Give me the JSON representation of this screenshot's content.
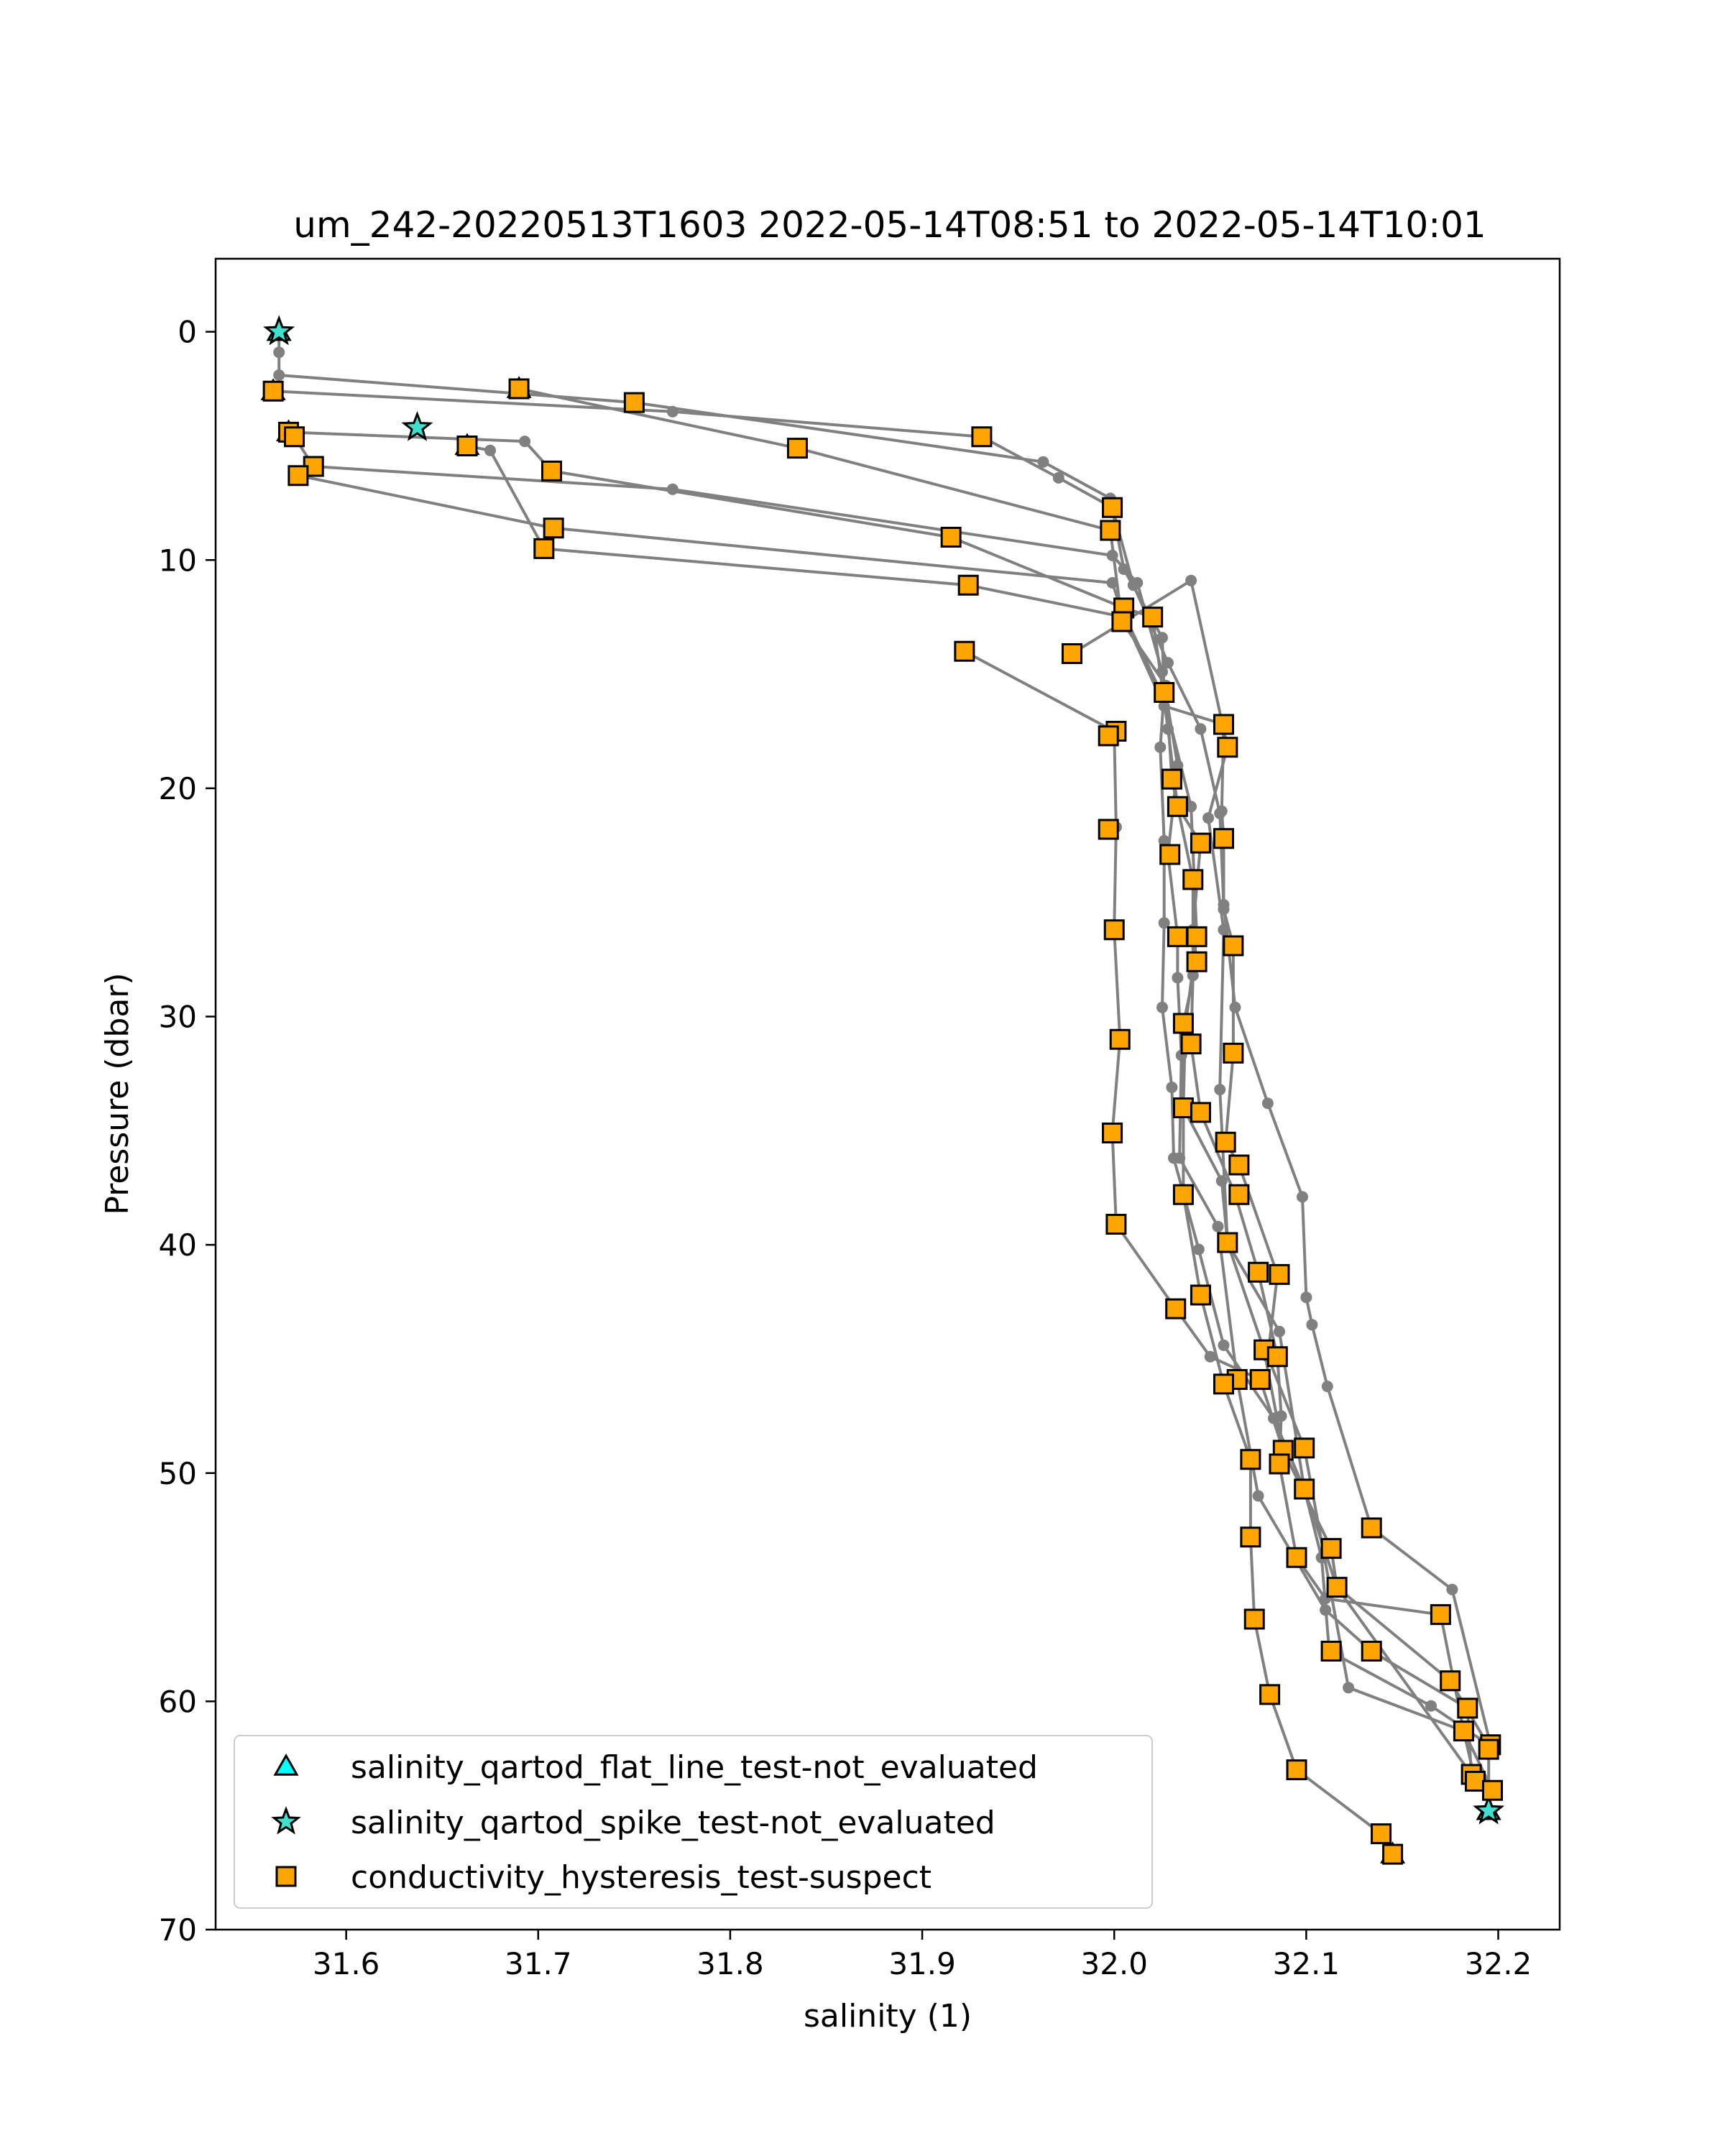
{
  "chart_data": {
    "type": "scatter",
    "title": "um_242-20220513T1603 2022-05-14T08:51 to 2022-05-14T10:01",
    "xlabel": "salinity (1)",
    "ylabel": "Pressure (dbar)",
    "xlim": [
      31.532,
      32.232
    ],
    "ylim": [
      70,
      -3.2
    ],
    "y_inverted": true,
    "xticks": [
      31.6,
      31.7,
      31.8,
      31.9,
      32.0,
      32.1,
      32.2
    ],
    "xtick_labels": [
      "31.6",
      "31.7",
      "31.8",
      "31.9",
      "32.0",
      "32.1",
      "32.2"
    ],
    "yticks": [
      0,
      10,
      20,
      30,
      40,
      50,
      60,
      70
    ],
    "ytick_labels": [
      "0",
      "10",
      "20",
      "30",
      "40",
      "50",
      "60",
      "70"
    ],
    "grid": false,
    "legend_position": "lower-left",
    "colors": {
      "line": "#808080",
      "flat_line": "#00FFFF",
      "spike": "#40E0D0",
      "hysteresis": "#FFA500",
      "marker_edge": "#000000"
    },
    "series": [
      {
        "name": "salinity_qartod_flat_line_test-not_evaluated",
        "marker": "triangle",
        "points": [
          [
            31.565,
            0.0
          ],
          [
            31.562,
            2.6
          ],
          [
            31.69,
            2.5
          ],
          [
            31.57,
            4.4
          ],
          [
            31.663,
            5.0
          ],
          [
            32.195,
            64.8
          ],
          [
            32.145,
            66.7
          ]
        ]
      },
      {
        "name": "salinity_qartod_spike_test-not_evaluated",
        "marker": "star",
        "points": [
          [
            31.565,
            0.0
          ],
          [
            31.637,
            4.2
          ],
          [
            32.195,
            64.8
          ]
        ]
      },
      {
        "name": "conductivity_hysteresis_test-suspect",
        "marker": "square",
        "points": [
          [
            31.562,
            2.6
          ],
          [
            31.69,
            2.5
          ],
          [
            31.75,
            3.1
          ],
          [
            31.931,
            4.6
          ],
          [
            31.835,
            5.1
          ],
          [
            31.57,
            4.4
          ],
          [
            31.573,
            4.6
          ],
          [
            31.583,
            5.9
          ],
          [
            31.575,
            6.3
          ],
          [
            31.663,
            5.0
          ],
          [
            31.707,
            6.1
          ],
          [
            31.708,
            8.6
          ],
          [
            31.703,
            9.5
          ],
          [
            31.915,
            9.0
          ],
          [
            31.924,
            11.1
          ],
          [
            31.922,
            14.0
          ],
          [
            31.978,
            14.1
          ],
          [
            31.999,
            7.7
          ],
          [
            31.998,
            8.7
          ],
          [
            32.02,
            12.5
          ],
          [
            32.005,
            12.1
          ],
          [
            32.004,
            12.7
          ],
          [
            32.026,
            15.8
          ],
          [
            32.057,
            17.2
          ],
          [
            32.059,
            18.2
          ],
          [
            32.001,
            17.5
          ],
          [
            31.997,
            17.7
          ],
          [
            32.03,
            19.6
          ],
          [
            32.033,
            20.8
          ],
          [
            31.997,
            21.8
          ],
          [
            32.029,
            22.9
          ],
          [
            32.045,
            22.4
          ],
          [
            32.057,
            22.2
          ],
          [
            32.041,
            24.0
          ],
          [
            32.033,
            26.5
          ],
          [
            32.043,
            26.5
          ],
          [
            32.062,
            26.9
          ],
          [
            32.043,
            27.6
          ],
          [
            32.0,
            26.2
          ],
          [
            32.036,
            30.3
          ],
          [
            32.04,
            31.2
          ],
          [
            32.062,
            31.6
          ],
          [
            32.003,
            31.0
          ],
          [
            32.036,
            34.0
          ],
          [
            32.045,
            34.2
          ],
          [
            32.058,
            35.5
          ],
          [
            32.065,
            36.5
          ],
          [
            31.999,
            35.1
          ],
          [
            32.036,
            37.8
          ],
          [
            32.065,
            37.8
          ],
          [
            32.001,
            39.1
          ],
          [
            32.059,
            39.9
          ],
          [
            32.075,
            41.2
          ],
          [
            32.086,
            41.3
          ],
          [
            32.045,
            42.2
          ],
          [
            32.032,
            42.8
          ],
          [
            32.078,
            44.6
          ],
          [
            32.085,
            44.9
          ],
          [
            32.064,
            45.9
          ],
          [
            32.057,
            46.1
          ],
          [
            32.076,
            45.9
          ],
          [
            32.088,
            49.0
          ],
          [
            32.099,
            48.9
          ],
          [
            32.086,
            49.6
          ],
          [
            32.071,
            49.4
          ],
          [
            32.099,
            50.7
          ],
          [
            32.134,
            52.4
          ],
          [
            32.113,
            53.3
          ],
          [
            32.071,
            52.8
          ],
          [
            32.095,
            53.7
          ],
          [
            32.116,
            55.0
          ],
          [
            32.17,
            56.2
          ],
          [
            32.073,
            56.4
          ],
          [
            32.113,
            57.8
          ],
          [
            32.134,
            57.8
          ],
          [
            32.175,
            59.1
          ],
          [
            32.184,
            60.3
          ],
          [
            32.081,
            59.7
          ],
          [
            32.182,
            61.3
          ],
          [
            32.196,
            61.9
          ],
          [
            32.195,
            62.1
          ],
          [
            32.186,
            63.2
          ],
          [
            32.188,
            63.5
          ],
          [
            32.197,
            63.9
          ],
          [
            32.095,
            63.0
          ],
          [
            32.139,
            65.8
          ],
          [
            32.145,
            66.7
          ]
        ]
      }
    ],
    "profiles": [
      [
        [
          31.565,
          0.0
        ],
        [
          31.565,
          0.9
        ],
        [
          31.565,
          1.9
        ],
        [
          31.75,
          3.1
        ],
        [
          31.963,
          5.7
        ],
        [
          31.998,
          7.3
        ],
        [
          32.005,
          10.4
        ],
        [
          32.025,
          13.4
        ],
        [
          32.026,
          15.8
        ],
        [
          32.024,
          18.2
        ],
        [
          32.026,
          22.3
        ],
        [
          32.026,
          25.9
        ],
        [
          32.025,
          29.6
        ],
        [
          32.03,
          33.1
        ],
        [
          32.031,
          36.2
        ],
        [
          32.044,
          40.2
        ],
        [
          32.057,
          44.4
        ],
        [
          32.083,
          47.6
        ],
        [
          32.099,
          50.7
        ],
        [
          32.108,
          53.7
        ],
        [
          32.112,
          57.8
        ],
        [
          32.165,
          60.2
        ],
        [
          32.195,
          61.9
        ],
        [
          32.195,
          63.7
        ],
        [
          32.195,
          64.8
        ]
      ],
      [
        [
          31.562,
          2.6
        ],
        [
          31.77,
          3.5
        ],
        [
          31.931,
          4.6
        ],
        [
          31.971,
          6.4
        ],
        [
          31.999,
          7.7
        ],
        [
          32.01,
          11.1
        ],
        [
          32.028,
          14.5
        ],
        [
          32.045,
          17.4
        ],
        [
          32.055,
          21.1
        ],
        [
          32.057,
          25.1
        ],
        [
          32.063,
          29.6
        ],
        [
          32.08,
          33.8
        ],
        [
          32.098,
          37.9
        ],
        [
          32.1,
          42.3
        ],
        [
          32.103,
          43.5
        ],
        [
          32.111,
          46.2
        ],
        [
          32.134,
          52.4
        ],
        [
          32.176,
          55.1
        ],
        [
          32.196,
          61.9
        ]
      ],
      [
        [
          31.69,
          2.5
        ],
        [
          31.835,
          5.1
        ],
        [
          31.998,
          8.7
        ],
        [
          32.004,
          12.7
        ],
        [
          32.027,
          15.5
        ],
        [
          32.03,
          19.6
        ],
        [
          32.041,
          24.0
        ],
        [
          32.041,
          28.2
        ],
        [
          32.04,
          31.2
        ],
        [
          32.045,
          34.2
        ],
        [
          32.063,
          37.8
        ],
        [
          32.075,
          41.2
        ],
        [
          32.085,
          44.9
        ],
        [
          32.087,
          47.5
        ],
        [
          32.086,
          49.6
        ],
        [
          32.095,
          53.7
        ],
        [
          32.11,
          55.5
        ],
        [
          32.17,
          56.2
        ],
        [
          32.182,
          61.3
        ],
        [
          32.188,
          63.5
        ]
      ],
      [
        [
          31.57,
          4.4
        ],
        [
          31.693,
          4.8
        ],
        [
          31.707,
          6.1
        ],
        [
          31.915,
          9.0
        ],
        [
          32.005,
          12.1
        ],
        [
          32.02,
          12.5
        ],
        [
          32.028,
          17.4
        ],
        [
          32.033,
          20.8
        ],
        [
          32.045,
          22.4
        ],
        [
          32.041,
          26.2
        ],
        [
          32.043,
          27.6
        ],
        [
          32.036,
          30.3
        ],
        [
          32.036,
          34.0
        ],
        [
          32.036,
          37.8
        ],
        [
          32.045,
          42.2
        ],
        [
          32.057,
          46.1
        ],
        [
          32.071,
          49.4
        ],
        [
          32.071,
          52.8
        ],
        [
          32.073,
          56.4
        ],
        [
          32.081,
          59.7
        ],
        [
          32.095,
          63.0
        ],
        [
          32.139,
          65.8
        ],
        [
          32.145,
          66.7
        ]
      ],
      [
        [
          31.573,
          4.6
        ],
        [
          31.583,
          5.9
        ],
        [
          31.77,
          6.9
        ],
        [
          31.999,
          9.8
        ],
        [
          32.012,
          11.0
        ],
        [
          32.025,
          14.9
        ],
        [
          32.033,
          19.0
        ],
        [
          32.028,
          22.9
        ],
        [
          32.033,
          26.5
        ],
        [
          32.033,
          28.3
        ],
        [
          32.035,
          31.7
        ],
        [
          32.034,
          36.2
        ],
        [
          32.054,
          39.2
        ],
        [
          32.064,
          45.9
        ],
        [
          32.075,
          51.0
        ],
        [
          32.11,
          56.0
        ],
        [
          32.134,
          57.8
        ],
        [
          32.184,
          60.3
        ],
        [
          32.186,
          63.2
        ]
      ],
      [
        [
          31.575,
          6.3
        ],
        [
          31.708,
          8.6
        ],
        [
          31.999,
          11.0
        ],
        [
          32.003,
          12.0
        ],
        [
          32.026,
          16.1
        ],
        [
          32.04,
          20.8
        ],
        [
          32.043,
          26.5
        ],
        [
          32.037,
          30.5
        ],
        [
          32.036,
          34.0
        ],
        [
          32.056,
          37.2
        ],
        [
          32.059,
          39.9
        ],
        [
          32.078,
          44.6
        ],
        [
          32.088,
          49.0
        ],
        [
          32.113,
          53.3
        ],
        [
          32.116,
          55.0
        ],
        [
          32.175,
          59.1
        ],
        [
          32.196,
          62.1
        ]
      ],
      [
        [
          31.663,
          5.0
        ],
        [
          31.675,
          5.2
        ],
        [
          31.703,
          9.5
        ],
        [
          31.924,
          11.1
        ],
        [
          32.005,
          12.5
        ],
        [
          32.026,
          16.4
        ],
        [
          32.057,
          17.2
        ],
        [
          32.056,
          21.0
        ],
        [
          32.057,
          22.2
        ],
        [
          32.057,
          25.3
        ],
        [
          32.062,
          26.9
        ],
        [
          32.062,
          31.6
        ],
        [
          32.058,
          35.5
        ],
        [
          32.065,
          36.5
        ],
        [
          32.085,
          41.3
        ],
        [
          32.08,
          44.9
        ],
        [
          32.099,
          48.9
        ],
        [
          32.122,
          59.4
        ],
        [
          32.182,
          61.3
        ],
        [
          32.197,
          63.9
        ]
      ],
      [
        [
          31.922,
          14.0
        ],
        [
          32.0,
          17.5
        ],
        [
          32.001,
          21.7
        ],
        [
          32.0,
          26.2
        ],
        [
          32.003,
          31.0
        ],
        [
          31.999,
          35.1
        ],
        [
          32.001,
          39.1
        ],
        [
          32.032,
          42.8
        ],
        [
          32.05,
          44.9
        ],
        [
          32.076,
          45.9
        ],
        [
          32.088,
          49.0
        ],
        [
          32.113,
          53.3
        ]
      ],
      [
        [
          31.978,
          14.1
        ],
        [
          32.04,
          10.9
        ],
        [
          32.059,
          18.2
        ],
        [
          32.049,
          21.3
        ],
        [
          32.057,
          26.2
        ],
        [
          32.055,
          33.2
        ],
        [
          32.059,
          39.9
        ],
        [
          32.086,
          43.8
        ],
        [
          32.099,
          50.7
        ],
        [
          32.116,
          55.0
        ],
        [
          32.186,
          63.2
        ]
      ]
    ]
  }
}
